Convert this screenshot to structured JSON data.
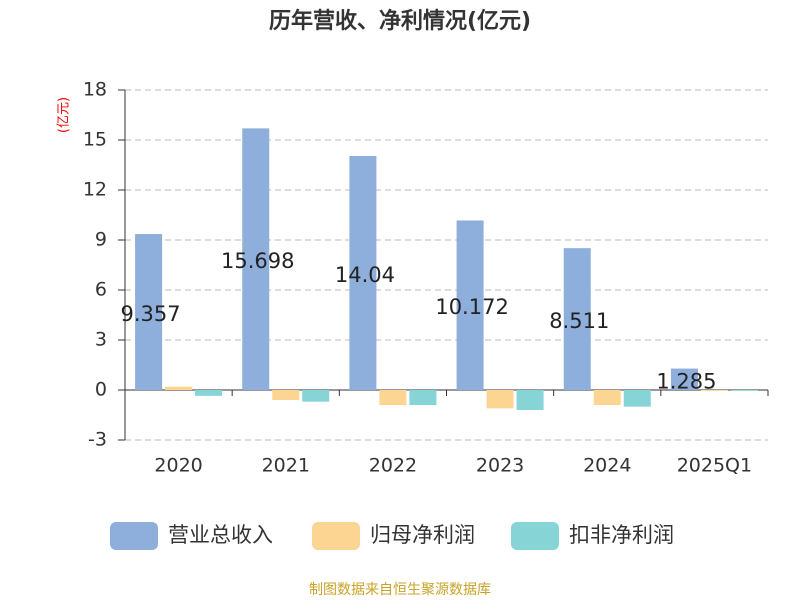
{
  "chart_data": {
    "type": "bar",
    "title": "历年营收、净利情况(亿元)",
    "y_label": "(亿元)",
    "categories": [
      "2020",
      "2021",
      "2022",
      "2023",
      "2024",
      "2025Q1"
    ],
    "series": [
      {
        "name": "营业总收入",
        "color": "#8eaedb",
        "values": [
          9.357,
          15.698,
          14.04,
          10.172,
          8.511,
          1.285
        ]
      },
      {
        "name": "归母净利润",
        "color": "#fdd592",
        "values": [
          0.2,
          -0.6,
          -0.9,
          -1.1,
          -0.9,
          -0.05
        ]
      },
      {
        "name": "扣非净利润",
        "color": "#86d4d6",
        "values": [
          -0.35,
          -0.7,
          -0.9,
          -1.2,
          -1.0,
          -0.05
        ]
      }
    ],
    "ylim": [
      -3,
      18
    ],
    "yticks": [
      -3,
      0,
      3,
      6,
      9,
      12,
      15,
      18
    ],
    "grid": true,
    "labeled_series": 0,
    "source": "制图数据来自恒生聚源数据库"
  }
}
